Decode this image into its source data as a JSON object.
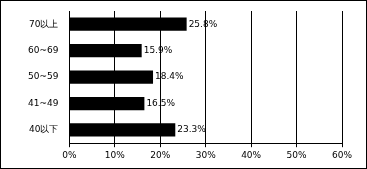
{
  "chart_data": {
    "type": "bar",
    "orientation": "horizontal",
    "categories": [
      "70以上",
      "60~69",
      "50~59",
      "41~49",
      "40以下"
    ],
    "values": [
      25.8,
      15.9,
      18.4,
      16.5,
      23.3
    ],
    "value_labels": [
      "25.8%",
      "15.9%",
      "18.4%",
      "16.5%",
      "23.3%"
    ],
    "data_labels": true,
    "color": "#000000",
    "xlim": [
      0,
      60
    ],
    "xticks": [
      {
        "value": 0,
        "label": "0%"
      },
      {
        "value": 10,
        "label": "10%"
      },
      {
        "value": 20,
        "label": "20%"
      },
      {
        "value": 30,
        "label": "30%"
      },
      {
        "value": 40,
        "label": "40%"
      },
      {
        "value": 50,
        "label": "50%"
      },
      {
        "value": 60,
        "label": "60%"
      }
    ],
    "grid": true
  }
}
